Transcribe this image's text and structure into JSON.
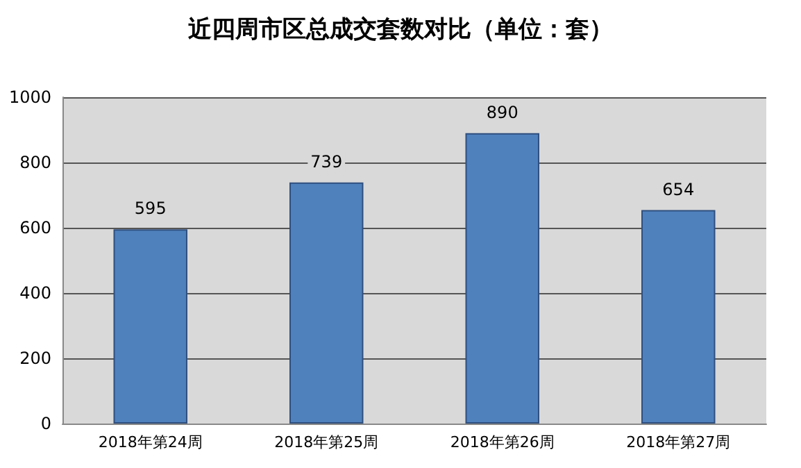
{
  "chart_data": {
    "type": "bar",
    "title": "近四周市区总成交套数对比（单位：套）",
    "categories": [
      "2018年第24周",
      "2018年第25周",
      "2018年第26周",
      "2018年第27周"
    ],
    "values": [
      595,
      739,
      890,
      654
    ],
    "color": "#4f81bd",
    "ylim": [
      0,
      1000
    ],
    "yticks": [
      0,
      200,
      400,
      600,
      800,
      1000
    ],
    "grid": "y",
    "data_labels": true
  }
}
